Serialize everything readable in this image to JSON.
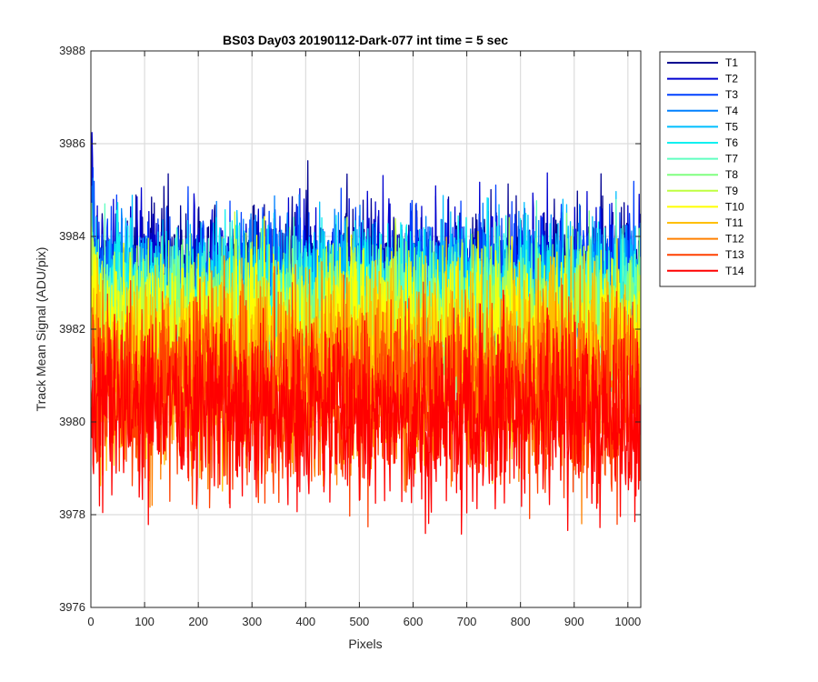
{
  "chart_data": {
    "type": "line",
    "title": "BS03 Day03 20190112-Dark-077 int time = 5 sec",
    "xlabel": "Pixels",
    "ylabel": "Track Mean Signal (ADU/pix)",
    "xlim": [
      0,
      1024
    ],
    "ylim": [
      3976,
      3988
    ],
    "xticks": [
      "0",
      "100",
      "200",
      "300",
      "400",
      "500",
      "600",
      "700",
      "800",
      "900",
      "1000"
    ],
    "yticks": [
      "3976",
      "3978",
      "3980",
      "3982",
      "3984",
      "3986",
      "3988"
    ],
    "grid": true,
    "legend_position": "outside-right",
    "x_range": [
      1,
      1024
    ],
    "noise_note": "Each series is a noisy dark-signal trace across pixels 1–1024; means decrease from T1 to T14.",
    "series": [
      {
        "name": "T1",
        "color": "#00008F",
        "mean": 3983.2,
        "amplitude": 0.8
      },
      {
        "name": "T2",
        "color": "#0000D0",
        "mean": 3983.1,
        "amplitude": 0.8
      },
      {
        "name": "T3",
        "color": "#0040FF",
        "mean": 3982.9,
        "amplitude": 0.8
      },
      {
        "name": "T4",
        "color": "#0080FF",
        "mean": 3982.8,
        "amplitude": 0.8
      },
      {
        "name": "T5",
        "color": "#00BFFF",
        "mean": 3982.7,
        "amplitude": 0.8
      },
      {
        "name": "T6",
        "color": "#10F0F0",
        "mean": 3982.6,
        "amplitude": 0.8
      },
      {
        "name": "T7",
        "color": "#60FFC0",
        "mean": 3982.4,
        "amplitude": 0.8
      },
      {
        "name": "T8",
        "color": "#80FF80",
        "mean": 3982.2,
        "amplitude": 0.8
      },
      {
        "name": "T9",
        "color": "#BFFF40",
        "mean": 3982.0,
        "amplitude": 0.85
      },
      {
        "name": "T10",
        "color": "#FFFF00",
        "mean": 3981.8,
        "amplitude": 0.9
      },
      {
        "name": "T11",
        "color": "#FFBF00",
        "mean": 3981.3,
        "amplitude": 1.0
      },
      {
        "name": "T12",
        "color": "#FF8000",
        "mean": 3980.9,
        "amplitude": 1.0
      },
      {
        "name": "T13",
        "color": "#FF4000",
        "mean": 3980.5,
        "amplitude": 1.0
      },
      {
        "name": "T14",
        "color": "#FF0000",
        "mean": 3980.2,
        "amplitude": 1.0
      }
    ]
  }
}
